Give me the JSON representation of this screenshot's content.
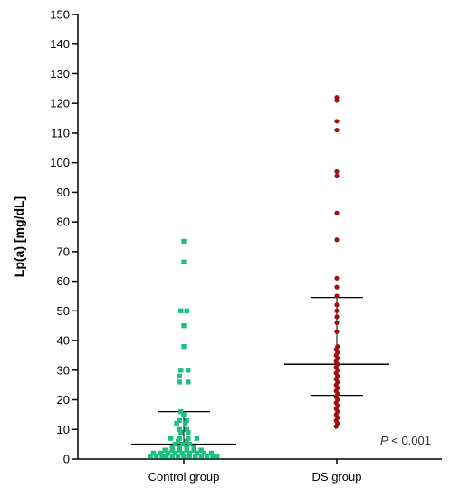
{
  "chart_data": {
    "type": "scatter",
    "ylabel": "Lp(a) [mg/dL]",
    "ylim": [
      0,
      150
    ],
    "yticks": [
      0,
      10,
      20,
      30,
      40,
      50,
      60,
      70,
      80,
      90,
      100,
      110,
      120,
      130,
      140,
      150
    ],
    "grid": false,
    "annotation": {
      "p": "P",
      "rest": " < 0.001"
    },
    "categories": [
      "Control group",
      "DS group"
    ],
    "series": [
      {
        "color": "#1fbf7f",
        "marker": "square",
        "mean": 16,
        "sd_low": 5,
        "sd_high": 16,
        "points": [
          [
            -0.23,
            1
          ],
          [
            -0.19,
            1
          ],
          [
            -0.15,
            1
          ],
          [
            -0.12,
            1
          ],
          [
            -0.08,
            1
          ],
          [
            -0.04,
            1
          ],
          [
            0.0,
            1
          ],
          [
            0.04,
            1
          ],
          [
            0.08,
            1
          ],
          [
            0.12,
            1
          ],
          [
            0.16,
            1
          ],
          [
            0.2,
            1
          ],
          [
            0.23,
            1
          ],
          [
            -0.21,
            2
          ],
          [
            -0.16,
            2
          ],
          [
            -0.11,
            2
          ],
          [
            -0.06,
            2
          ],
          [
            -0.01,
            2
          ],
          [
            0.04,
            2
          ],
          [
            0.09,
            2
          ],
          [
            0.14,
            2
          ],
          [
            0.19,
            2
          ],
          [
            -0.13,
            3
          ],
          [
            -0.08,
            3
          ],
          [
            -0.03,
            3
          ],
          [
            0.02,
            3
          ],
          [
            0.07,
            3
          ],
          [
            0.12,
            3
          ],
          [
            -0.08,
            4
          ],
          [
            -0.03,
            4
          ],
          [
            0.02,
            4
          ],
          [
            0.07,
            4
          ],
          [
            -0.06,
            5
          ],
          [
            -0.01,
            5
          ],
          [
            0.04,
            5
          ],
          [
            -0.04,
            6
          ],
          [
            0.02,
            6
          ],
          [
            -0.09,
            7
          ],
          [
            -0.03,
            7
          ],
          [
            0.03,
            7
          ],
          [
            0.09,
            7
          ],
          [
            -0.02,
            9
          ],
          [
            0.03,
            9
          ],
          [
            -0.03,
            10
          ],
          [
            0.02,
            10
          ],
          [
            -0.05,
            12
          ],
          [
            0.01,
            12
          ],
          [
            -0.03,
            13
          ],
          [
            0.02,
            13
          ],
          [
            0.0,
            15
          ],
          [
            -0.02,
            16
          ],
          [
            -0.03,
            26
          ],
          [
            0.03,
            26
          ],
          [
            -0.03,
            28
          ],
          [
            -0.02,
            30
          ],
          [
            0.03,
            30
          ],
          [
            0.0,
            38
          ],
          [
            0.0,
            45
          ],
          [
            -0.02,
            50
          ],
          [
            0.02,
            50
          ],
          [
            0.0,
            66.5
          ],
          [
            0.0,
            73.5
          ]
        ]
      },
      {
        "color": "#a01010",
        "marker": "circle",
        "mean": 32,
        "sd_low": 21.5,
        "sd_high": 54.5,
        "points": [
          [
            0,
            122
          ],
          [
            0,
            121
          ],
          [
            0,
            114
          ],
          [
            0,
            111
          ],
          [
            0,
            97
          ],
          [
            0,
            95.5
          ],
          [
            0,
            83
          ],
          [
            0,
            74
          ],
          [
            0,
            61
          ],
          [
            0,
            58
          ],
          [
            0,
            55
          ],
          [
            0,
            52
          ],
          [
            0,
            50
          ],
          [
            0,
            48
          ],
          [
            0,
            46
          ],
          [
            0,
            43
          ],
          [
            0.005,
            38
          ],
          [
            -0.005,
            37
          ],
          [
            0.005,
            36
          ],
          [
            -0.005,
            35
          ],
          [
            0.005,
            34
          ],
          [
            -0.005,
            33
          ],
          [
            0.005,
            32
          ],
          [
            -0.005,
            31
          ],
          [
            0.005,
            30
          ],
          [
            -0.005,
            29
          ],
          [
            0.005,
            28
          ],
          [
            -0.005,
            27
          ],
          [
            0.005,
            26
          ],
          [
            -0.005,
            25
          ],
          [
            0.005,
            24
          ],
          [
            -0.005,
            23
          ],
          [
            0.005,
            22
          ],
          [
            -0.005,
            21
          ],
          [
            0.005,
            20
          ],
          [
            -0.005,
            19
          ],
          [
            0.005,
            18
          ],
          [
            -0.005,
            17
          ],
          [
            0.005,
            16
          ],
          [
            -0.005,
            15
          ],
          [
            0.005,
            14
          ],
          [
            -0.005,
            13
          ],
          [
            0.005,
            12
          ],
          [
            -0.005,
            11
          ]
        ]
      }
    ]
  }
}
